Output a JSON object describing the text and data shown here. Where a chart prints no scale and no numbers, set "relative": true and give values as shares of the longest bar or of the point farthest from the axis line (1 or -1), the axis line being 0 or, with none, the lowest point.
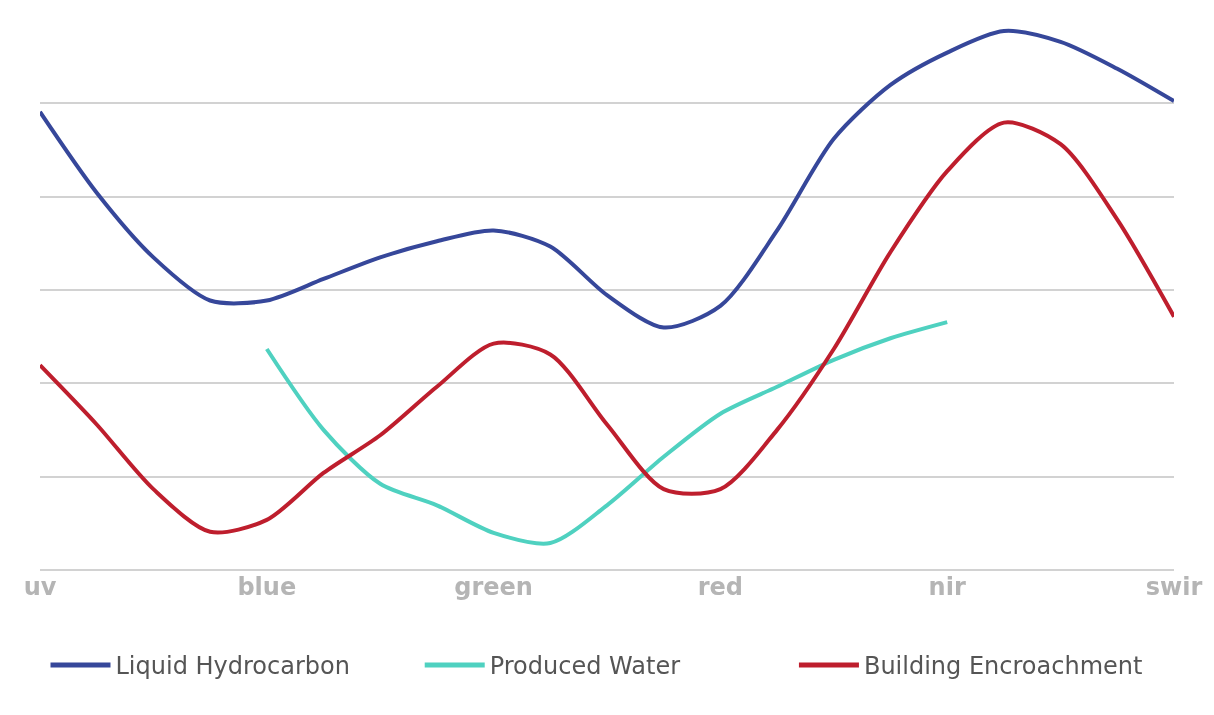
{
  "chart_data": {
    "type": "line",
    "relative": true,
    "grid": "y",
    "legend": "bottom",
    "marker": "none",
    "line_style": "solid",
    "categories": [
      "uv",
      null,
      null,
      null,
      "blue",
      null,
      null,
      null,
      "green",
      null,
      null,
      null,
      "red",
      null,
      null,
      null,
      "nir",
      null,
      null,
      null,
      "swir"
    ],
    "series": [
      {
        "name": "Liquid Hydrocarbon",
        "color": "#36479a",
        "values": [
          0.85,
          0.7,
          0.58,
          0.5,
          0.5,
          0.54,
          0.58,
          0.61,
          0.63,
          0.6,
          0.51,
          0.45,
          0.49,
          0.63,
          0.8,
          0.9,
          0.96,
          1,
          0.98,
          0.93,
          0.87
        ]
      },
      {
        "name": "Produced Water",
        "color": "#4fd1c0",
        "values": [
          null,
          null,
          null,
          null,
          0.41,
          0.26,
          0.16,
          0.12,
          0.069,
          0.05,
          0.12,
          0.21,
          0.29,
          0.34,
          0.39,
          0.43,
          0.46,
          null,
          null,
          null,
          null
        ]
      },
      {
        "name": "Building Encroachment",
        "color": "#be1e2d",
        "values": [
          0.38,
          0.27,
          0.15,
          0.071,
          0.093,
          0.18,
          0.25,
          0.34,
          0.42,
          0.4,
          0.27,
          0.15,
          0.15,
          0.26,
          0.41,
          0.59,
          0.74,
          0.83,
          0.79,
          0.65,
          0.47
        ]
      }
    ]
  }
}
